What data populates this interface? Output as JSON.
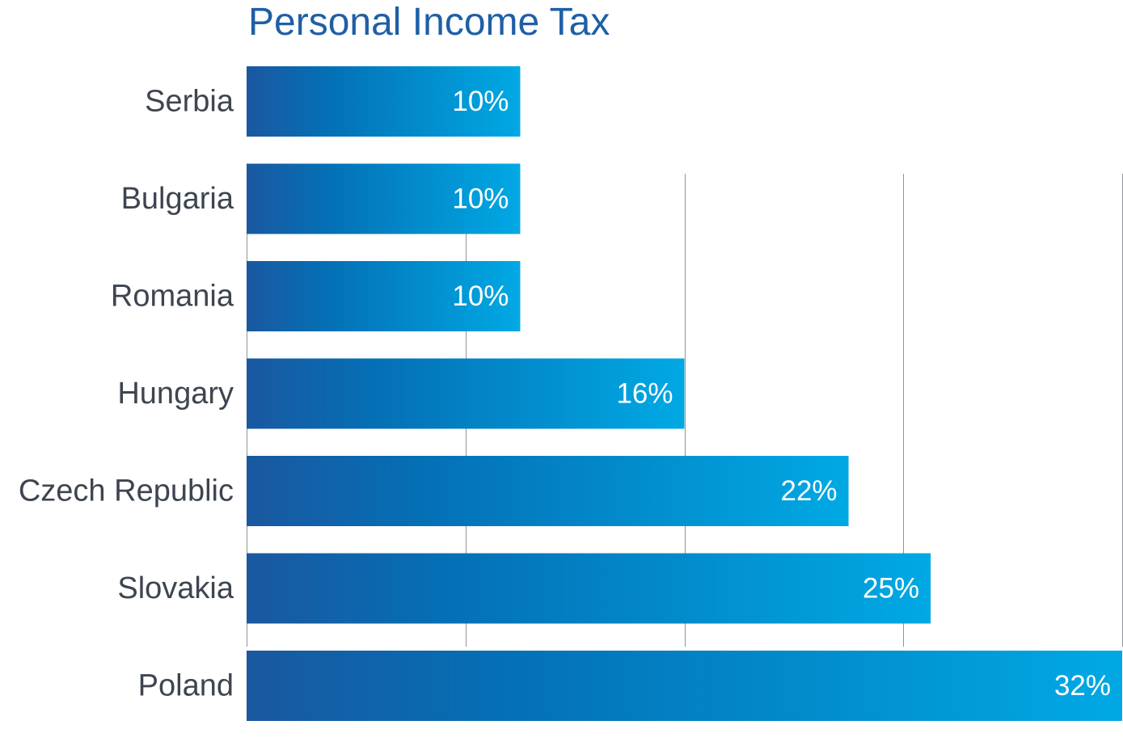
{
  "chart_data": {
    "type": "bar",
    "orientation": "horizontal",
    "title": "Personal Income Tax",
    "categories": [
      "Serbia",
      "Bulgaria",
      "Romania",
      "Hungary",
      "Czech Republic",
      "Slovakia",
      "Poland"
    ],
    "values": [
      10,
      10,
      10,
      16,
      22,
      25,
      32
    ],
    "value_labels": [
      "10%",
      "10%",
      "10%",
      "16%",
      "22%",
      "25%",
      "32%"
    ],
    "xlim": [
      0,
      32
    ],
    "xticks": [
      0,
      8,
      16,
      24,
      32
    ],
    "grid": true,
    "legend": "none",
    "colors": {
      "bar_start": "#1a58a0",
      "bar_mid": "#0470b6",
      "bar_end": "#00a9e4",
      "title": "#1f5fa5",
      "category_text": "#3d4550",
      "value_text": "#ffffff",
      "grid": "#8f939a"
    }
  }
}
